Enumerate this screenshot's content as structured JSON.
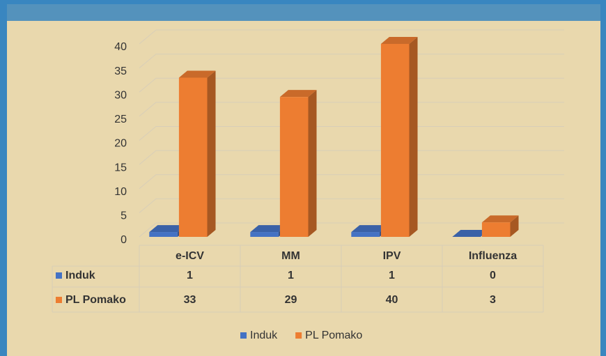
{
  "chart_data": {
    "type": "bar3d",
    "categories": [
      "e-ICV",
      "MM",
      "IPV",
      "Influenza"
    ],
    "series": [
      {
        "name": "Induk",
        "color": "#4472c4",
        "values": [
          1,
          1,
          1,
          0
        ]
      },
      {
        "name": "PL Pomako",
        "color": "#ed7d31",
        "values": [
          33,
          29,
          40,
          3
        ]
      }
    ],
    "ylim": [
      0,
      40
    ],
    "yticks": [
      0,
      5,
      10,
      15,
      20,
      25,
      30,
      35,
      40
    ],
    "grid": true,
    "legend": "bottom"
  }
}
